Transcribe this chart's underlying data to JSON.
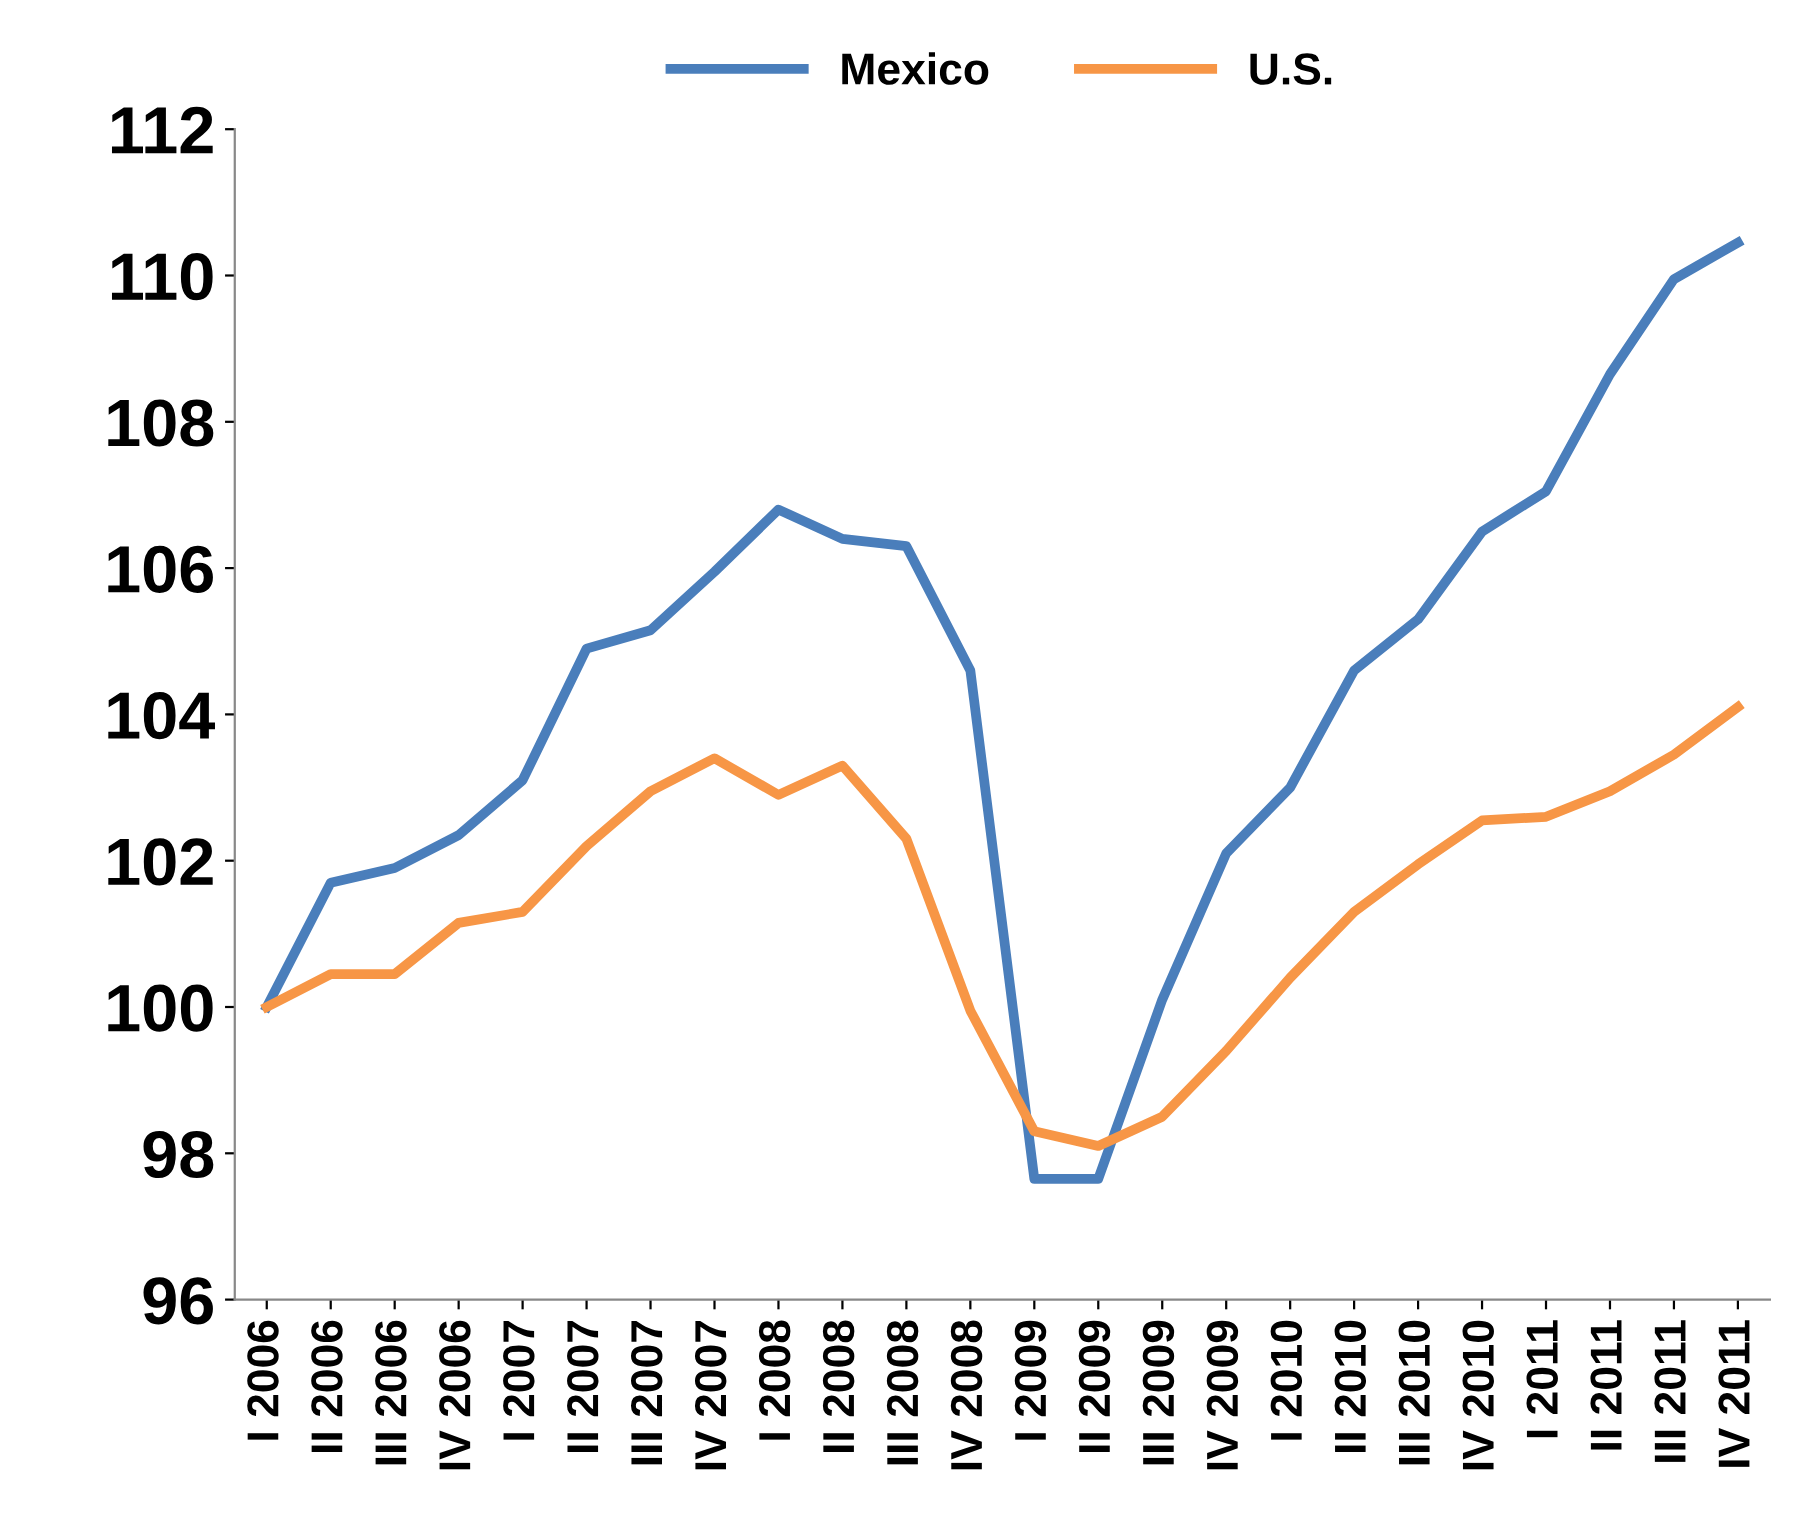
{
  "chart_data": {
    "type": "line",
    "categories": [
      "I 2006",
      "II 2006",
      "III 2006",
      "IV 2006",
      "I 2007",
      "II 2007",
      "III 2007",
      "IV 2007",
      "I 2008",
      "II 2008",
      "III 2008",
      "IV 2008",
      "I 2009",
      "II 2009",
      "III 2009",
      "IV 2009",
      "I 2010",
      "II 2010",
      "III 2010",
      "IV 2010",
      "I 2011",
      "II 2011",
      "III 2011",
      "IV 2011"
    ],
    "series": [
      {
        "name": "Mexico",
        "color": "#4a7ebb",
        "values": [
          100,
          101.7,
          101.9,
          102.35,
          103.1,
          104.9,
          105.15,
          105.95,
          106.8,
          106.4,
          106.3,
          104.6,
          97.65,
          97.65,
          100.1,
          102.1,
          103.0,
          104.6,
          105.3,
          106.5,
          107.05,
          108.65,
          109.95,
          110.45
        ]
      },
      {
        "name": "U.S.",
        "color": "#f79646",
        "values": [
          100,
          100.45,
          100.45,
          101.15,
          101.3,
          102.2,
          102.95,
          103.4,
          102.9,
          103.3,
          102.3,
          99.95,
          98.3,
          98.1,
          98.5,
          99.4,
          100.4,
          101.3,
          101.95,
          102.55,
          102.6,
          102.95,
          103.45,
          104.1
        ]
      }
    ],
    "ylim": [
      96,
      112
    ],
    "yticks": [
      96,
      98,
      100,
      102,
      104,
      106,
      108,
      110,
      112
    ],
    "grid": false,
    "legend": "top",
    "marker": "none",
    "line_style": "solid"
  }
}
